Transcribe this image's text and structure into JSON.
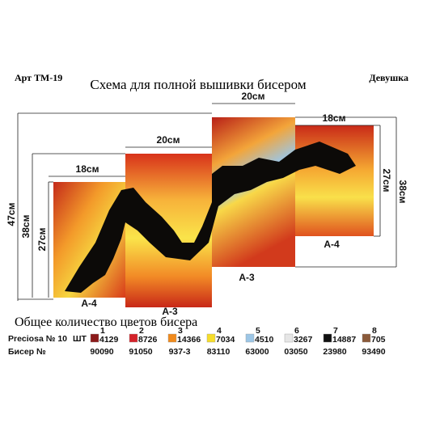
{
  "header": {
    "article": "Арт ТМ-19",
    "title": "Схема для полной вышивки бисером",
    "name": "Девушка"
  },
  "dimensions": {
    "top_a3_right": "20см",
    "top_a4_right": "18см",
    "top_a3_left": "20см",
    "top_a4_left": "18см",
    "left_total": "47см",
    "left_a3": "38см",
    "left_a4": "27см",
    "right_a4": "27см",
    "right_a3": "38см"
  },
  "panels": [
    "A-4",
    "A-3",
    "A-3",
    "A-4"
  ],
  "legend": {
    "title": "Общее количество цветов бисера",
    "brand": "Preciosa № 10",
    "count_label": "ШТ",
    "code_label": "Бисер №",
    "colors": [
      {
        "index": "1",
        "count": "4129",
        "code": "90090",
        "color": "#8b1a1a"
      },
      {
        "index": "2",
        "count": "8726",
        "code": "91050",
        "color": "#d4222a"
      },
      {
        "index": "3",
        "count": "14366",
        "code": "937-3",
        "color": "#f08a1c"
      },
      {
        "index": "4",
        "count": "7034",
        "code": "83110",
        "color": "#f6dd2a"
      },
      {
        "index": "5",
        "count": "4510",
        "code": "63000",
        "color": "#9cc6e6"
      },
      {
        "index": "6",
        "count": "3267",
        "code": "03050",
        "color": "#e6e6e6"
      },
      {
        "index": "7",
        "count": "14887",
        "code": "23980",
        "color": "#111111"
      },
      {
        "index": "8",
        "count": "705",
        "code": "93490",
        "color": "#8a5a3a"
      }
    ]
  }
}
